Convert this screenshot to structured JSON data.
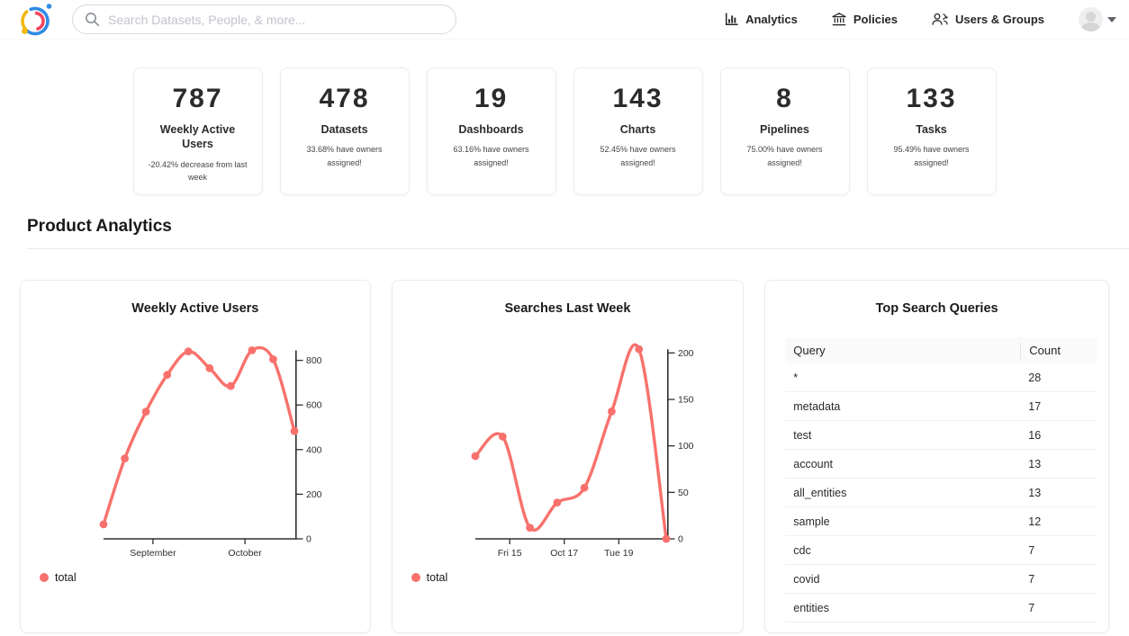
{
  "navbar": {
    "search_placeholder": "Search Datasets, People, & more...",
    "items": [
      {
        "label": "Analytics"
      },
      {
        "label": "Policies"
      },
      {
        "label": "Users & Groups"
      }
    ]
  },
  "stats_cards": [
    {
      "value": "787",
      "title": "Weekly Active Users",
      "subtitle": "-20.42% decrease from last week"
    },
    {
      "value": "478",
      "title": "Datasets",
      "subtitle": "33.68% have owners assigned!"
    },
    {
      "value": "19",
      "title": "Dashboards",
      "subtitle": "63.16% have owners assigned!"
    },
    {
      "value": "143",
      "title": "Charts",
      "subtitle": "52.45% have owners assigned!"
    },
    {
      "value": "8",
      "title": "Pipelines",
      "subtitle": "75.00% have owners assigned!"
    },
    {
      "value": "133",
      "title": "Tasks",
      "subtitle": "95.49% have owners assigned!"
    }
  ],
  "section_title": "Product Analytics",
  "chart_data": [
    {
      "type": "line",
      "title": "Weekly Active Users",
      "x_unit": "week",
      "series": [
        {
          "name": "total",
          "values": [
            65,
            360,
            570,
            735,
            840,
            765,
            685,
            845,
            805,
            483
          ]
        }
      ],
      "ylim": [
        0,
        875
      ],
      "yticks": [
        0,
        200,
        400,
        600,
        800
      ],
      "xticks": [
        {
          "label": "September",
          "pos": 2.33
        },
        {
          "label": "October",
          "pos": 6.67
        }
      ],
      "grid": false,
      "legend_position": "bottom-left",
      "y_axis_side": "right"
    },
    {
      "type": "line",
      "title": "Searches Last Week",
      "x_unit": "day",
      "series": [
        {
          "name": "total",
          "values": [
            89,
            110,
            12,
            39,
            55,
            137,
            204,
            0
          ]
        }
      ],
      "ylim": [
        0,
        210
      ],
      "yticks": [
        0,
        50,
        100,
        150,
        200
      ],
      "xticks": [
        {
          "label": "Fri 15",
          "pos": 1.26
        },
        {
          "label": "Oct 17",
          "pos": 3.26
        },
        {
          "label": "Tue 19",
          "pos": 5.26
        }
      ],
      "grid": false,
      "legend_position": "bottom-left",
      "y_axis_side": "right"
    },
    {
      "type": "table",
      "title": "Top Search Queries",
      "columns": [
        "Query",
        "Count"
      ],
      "rows": [
        [
          "*",
          28
        ],
        [
          "metadata",
          17
        ],
        [
          "test",
          16
        ],
        [
          "account",
          13
        ],
        [
          "all_entities",
          13
        ],
        [
          "sample",
          12
        ],
        [
          "cdc",
          7
        ],
        [
          "covid",
          7
        ],
        [
          "entities",
          7
        ]
      ]
    }
  ],
  "colors": {
    "accent_line": "#f8716c",
    "axis": "#2f2f2f",
    "logo_blue": "#2f8be6",
    "logo_yellow": "#f2b60f",
    "logo_red": "#f5455f"
  }
}
